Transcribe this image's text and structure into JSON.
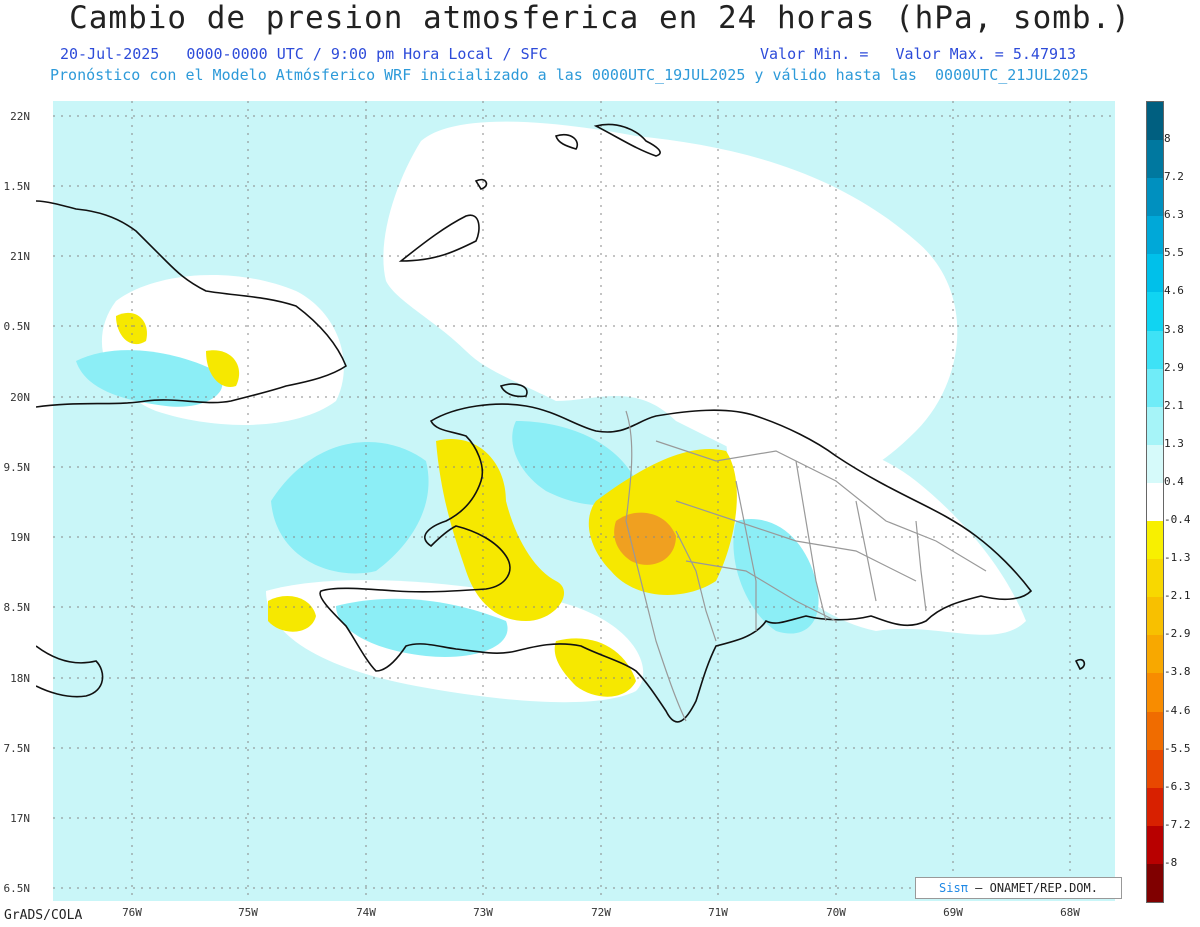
{
  "title": "Cambio de presion atmosferica en 24 horas (hPa, somb.)",
  "subtitle_left": "20-Jul-2025   0000-0000 UTC / 9:00 pm Hora Local / SFC",
  "subtitle_right": "Valor Min. =   Valor Max. = 5.47913",
  "subtitle2": "Pronóstico con el Modelo Atmósferico WRF inicializado a las 0000UTC_19JUL2025 y válido hasta las  0000UTC_21JUL2025",
  "footer_left": "GrADS/COLA",
  "credit": {
    "brand": "Sisπ",
    "text": "– ONAMET/REP.DOM."
  },
  "lat_labels": [
    "22N",
    "1.5N",
    "21N",
    "0.5N",
    "20N",
    "9.5N",
    "19N",
    "8.5N",
    "18N",
    "7.5N",
    "17N",
    "6.5N"
  ],
  "lon_labels": [
    "76W",
    "75W",
    "74W",
    "73W",
    "72W",
    "71W",
    "70W",
    "69W",
    "68W"
  ],
  "colorbar": {
    "labels": [
      "8",
      "7.2",
      "6.3",
      "5.5",
      "4.6",
      "3.8",
      "2.9",
      "2.1",
      "1.3",
      "0.4",
      "-0.4",
      "-1.3",
      "-2.1",
      "-2.9",
      "-3.8",
      "-4.6",
      "-5.5",
      "-6.3",
      "-7.2",
      "-8"
    ],
    "colors": [
      "#005f80",
      "#00789f",
      "#0090bf",
      "#00a8d8",
      "#00c0ea",
      "#10d4f2",
      "#3ee2f6",
      "#70ecf8",
      "#a6f4f8",
      "#d6fafa",
      "#ffffff",
      "#f8f000",
      "#f8d800",
      "#f8c000",
      "#f8a800",
      "#f88c00",
      "#f06c00",
      "#e84800",
      "#d82000",
      "#b80000",
      "#800000"
    ]
  },
  "colors": {
    "sea_fill": "#c9f6f8",
    "neutral": "#ffffff",
    "positive": "#8ceef6",
    "negative": "#f6e800",
    "strong_negative": "#f0a020"
  }
}
